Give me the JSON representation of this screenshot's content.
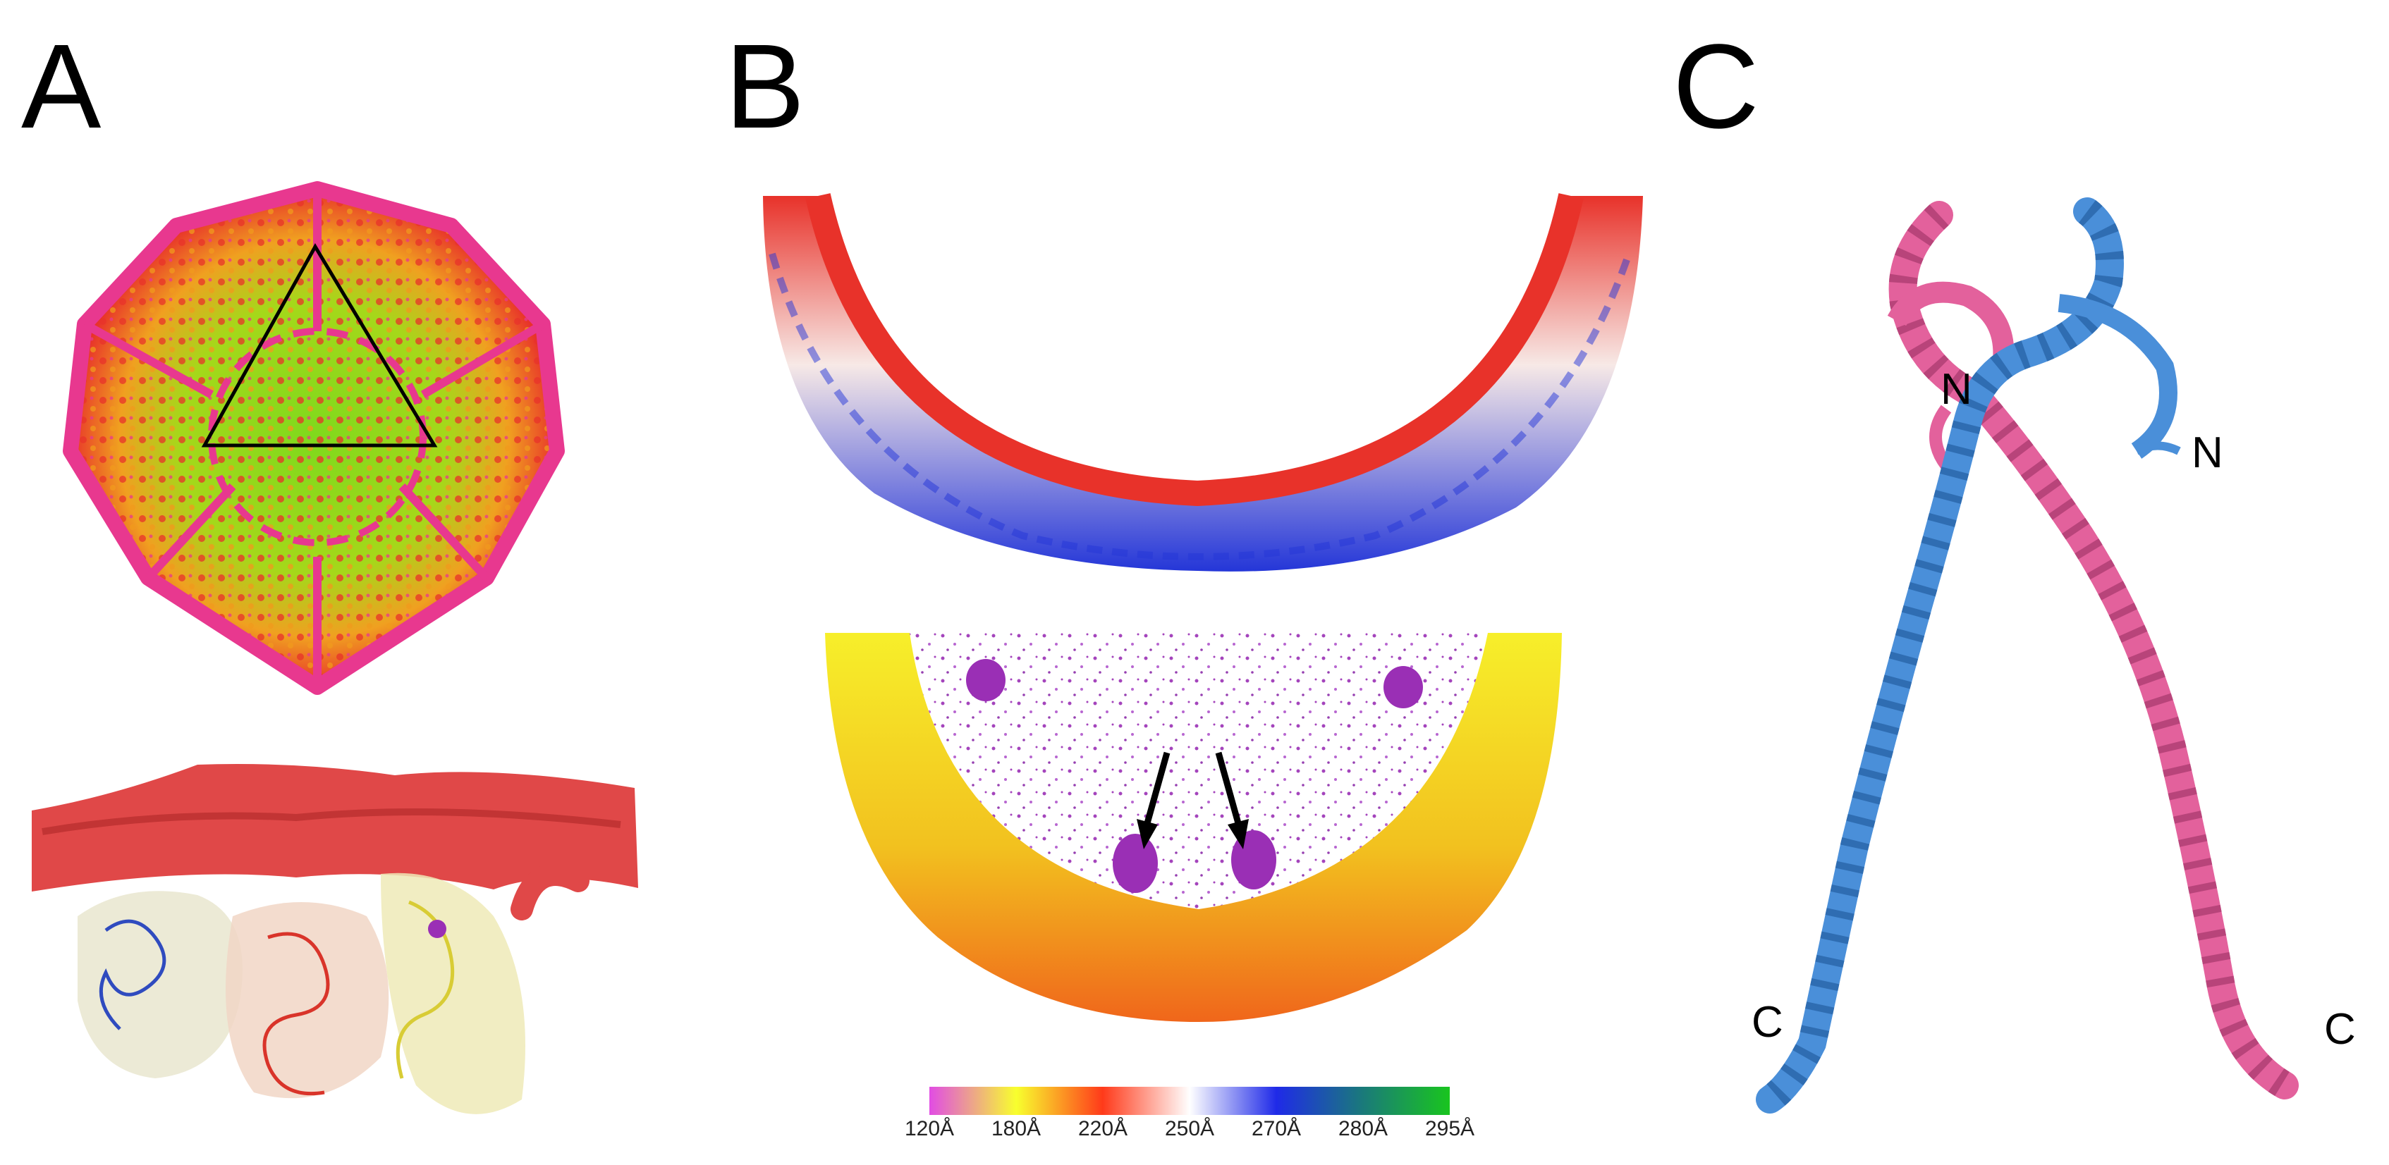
{
  "panels": {
    "a": {
      "letter": "A"
    },
    "b": {
      "letter": "B"
    },
    "c": {
      "letter": "C",
      "termini": {
        "n_left": "N",
        "n_right": "N",
        "c_left": "C",
        "c_right": "C"
      }
    }
  },
  "colorbar": {
    "ticks": [
      "120Å",
      "180Å",
      "220Å",
      "250Å",
      "270Å",
      "280Å",
      "295Å"
    ],
    "colors": [
      "#e14ce4",
      "#f8ff2e",
      "#ff3a1a",
      "#ffffff",
      "#1f2ae8",
      "#1a7a7a",
      "#19c51e"
    ]
  },
  "colors": {
    "helix_pink": "#e3619c",
    "helix_blue": "#4a8fd9",
    "capsid_red": "#e8322a",
    "capsid_green": "#74d219",
    "capsid_magenta": "#e8388f",
    "density_purple": "#9a2fb5"
  }
}
